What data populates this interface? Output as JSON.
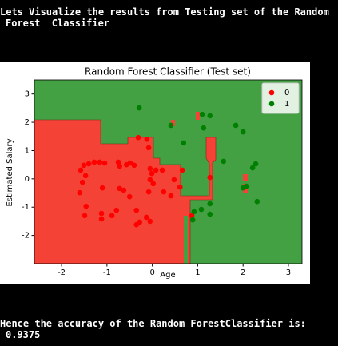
{
  "intro_text": "Lets Visualize the results from Testing set of the Random\nForest  Classifier",
  "chart_data": {
    "type": "scatter",
    "title": "Random Forest Classifier (Test set)",
    "x_label": "Age",
    "y_label": "Estimated Salary",
    "xlim": [
      -2.6,
      3.3
    ],
    "ylim": [
      -3.0,
      3.5
    ],
    "xticks": [
      -2,
      -1,
      0,
      1,
      2,
      3
    ],
    "yticks": [
      -2,
      -1,
      0,
      1,
      2,
      3
    ],
    "legend": "upper right",
    "series": [
      {
        "name": "0",
        "color": "#ff0000",
        "x": [
          -1.51,
          -1.4,
          -1.28,
          -1.16,
          -1.58,
          -1.47,
          -1.54,
          -1.6,
          -1.46,
          -1.49,
          -1.1,
          -1.05,
          -0.75,
          -0.72,
          -0.57,
          -0.49,
          -0.4,
          -0.72,
          -0.63,
          -0.5,
          -1.12,
          -1.12,
          -0.89,
          -0.79,
          -0.31,
          -0.12,
          -0.08,
          -0.35,
          -0.35,
          -0.28,
          -0.05,
          -0.01,
          0.08,
          -0.05,
          -0.08,
          -0.13,
          -0.05,
          0.02,
          0.25,
          0.41,
          0.22,
          0.48,
          0.61,
          0.66,
          0.87,
          1.27
        ],
        "y": [
          0.48,
          0.53,
          0.59,
          0.59,
          0.31,
          0.11,
          -0.12,
          -0.49,
          -0.97,
          -1.3,
          -0.32,
          0.56,
          0.59,
          0.45,
          0.5,
          0.56,
          0.48,
          -0.34,
          -0.4,
          -0.63,
          -1.22,
          -1.42,
          -1.3,
          -1.11,
          1.46,
          1.4,
          1.1,
          -1.11,
          -1.62,
          -1.53,
          0.36,
          0.19,
          0.31,
          -0.03,
          -0.46,
          -1.36,
          -1.5,
          -0.17,
          -0.46,
          -0.6,
          0.31,
          -0.03,
          -0.29,
          0.31,
          -1.3,
          0.05
        ]
      },
      {
        "name": "1",
        "color": "#008000",
        "x": [
          -0.29,
          1.1,
          1.27,
          0.41,
          0.69,
          1.13,
          1.84,
          2.0,
          2.28,
          2.21,
          2.31,
          2.0,
          0.89,
          0.92,
          1.27,
          1.08,
          1.27,
          1.57,
          2.07
        ],
        "y": [
          2.51,
          2.28,
          2.23,
          1.89,
          1.27,
          1.8,
          1.89,
          1.66,
          0.53,
          0.39,
          -0.8,
          -0.32,
          -1.45,
          -1.16,
          -1.25,
          -1.08,
          -0.88,
          0.62,
          -0.26
        ]
      }
    ]
  },
  "result_text": "Hence the accuracy of the Random ForestClassifier is:\n0.9375"
}
